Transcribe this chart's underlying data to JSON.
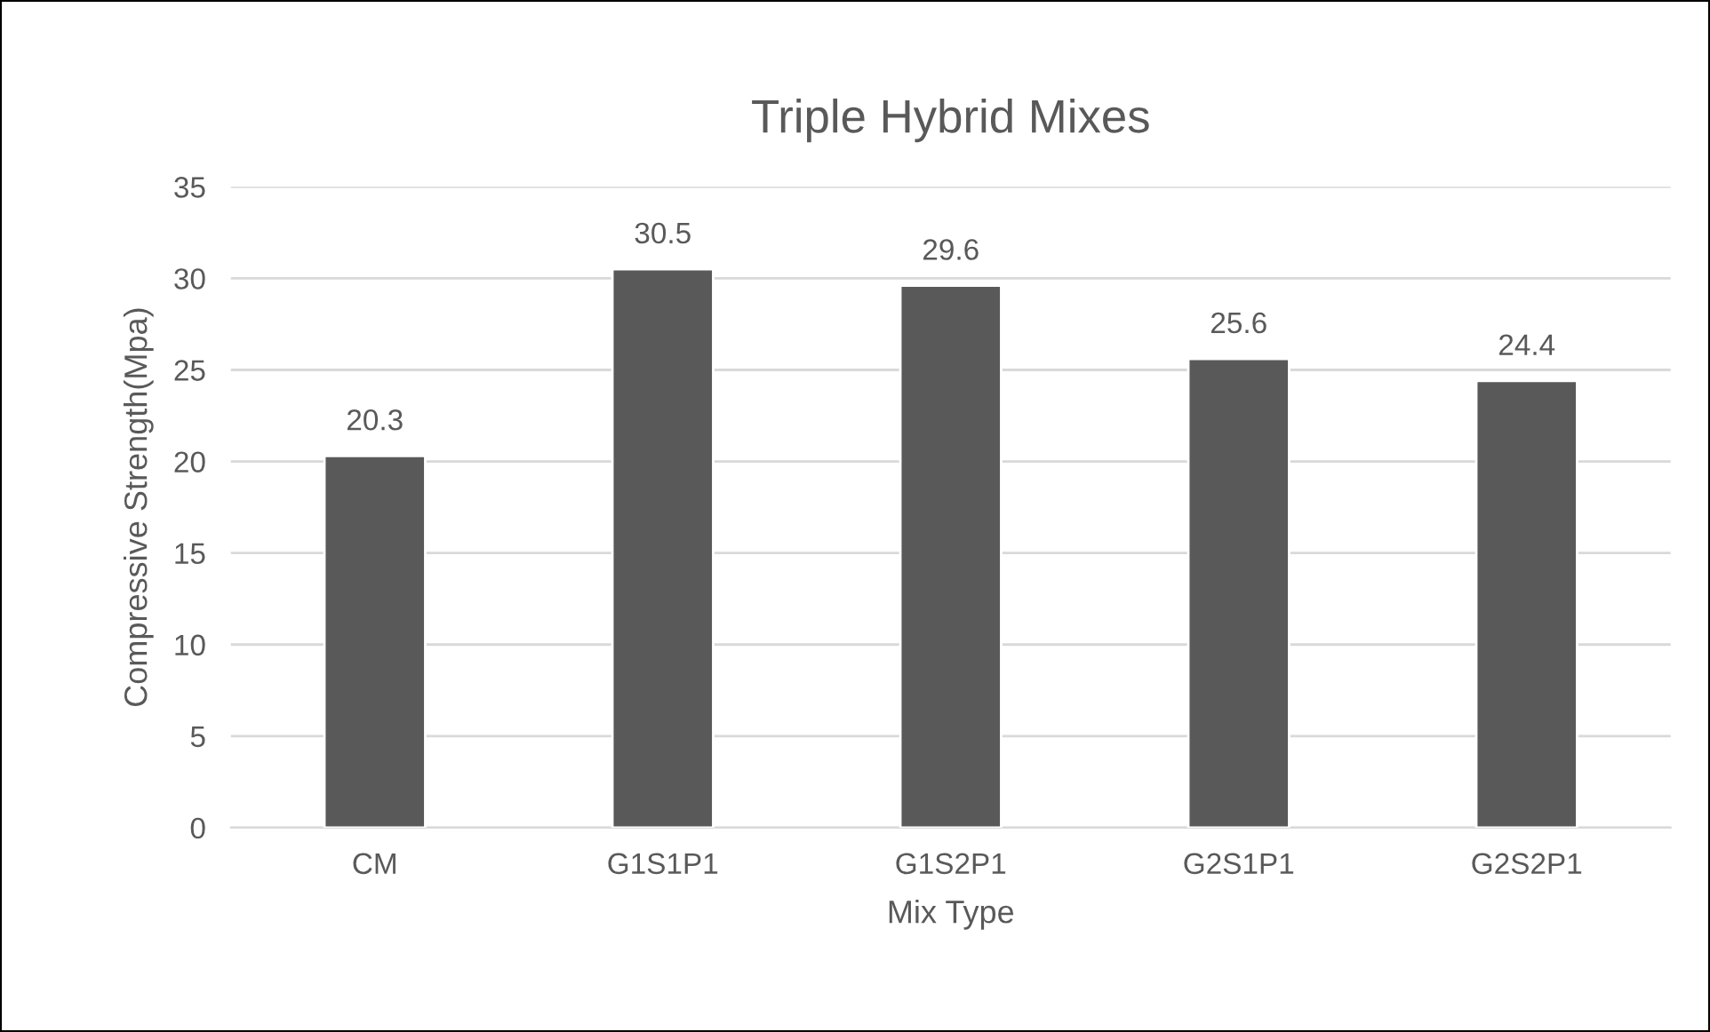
{
  "chart_data": {
    "type": "bar",
    "title": "Triple Hybrid Mixes",
    "xlabel": "Mix Type",
    "ylabel": "Compressive Strength(Mpa)",
    "categories": [
      "CM",
      "G1S1P1",
      "G1S2P1",
      "G2S1P1",
      "G2S2P1"
    ],
    "values": [
      20.3,
      30.5,
      29.6,
      25.6,
      24.4
    ],
    "color": "#595959",
    "ylim": [
      0,
      35
    ],
    "yticks": [
      0,
      5,
      10,
      15,
      20,
      25,
      30,
      35
    ],
    "grid": "y",
    "data_labels": true
  }
}
